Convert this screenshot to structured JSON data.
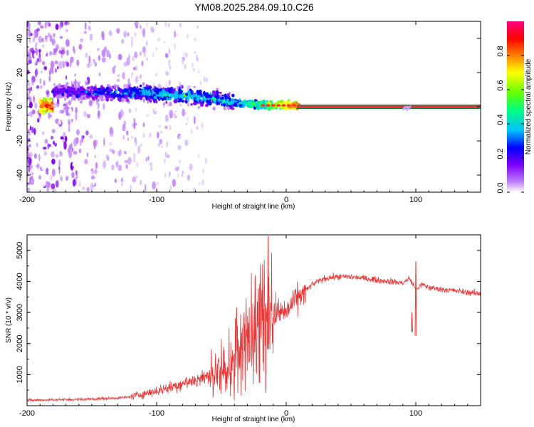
{
  "title": "YM08.2025.284.09.10.C26",
  "chart_data": [
    {
      "type": "heatmap",
      "xlabel": "Height of straight line (km)",
      "ylabel": "Frequency (Hz)",
      "xlim": [
        -200,
        150
      ],
      "ylim": [
        -50,
        50
      ],
      "xticks": [
        -200,
        -100,
        0,
        100
      ],
      "xtick_labels": [
        "-200",
        "-100",
        "0",
        "100"
      ],
      "yticks": [
        -40,
        -20,
        0,
        20,
        40
      ],
      "ytick_labels": [
        "-40",
        "-20",
        "0",
        "20",
        "40"
      ],
      "colorbar": {
        "label": "Normalized spectral amplitude",
        "range": [
          0,
          1
        ],
        "ticks": [
          0,
          0.2,
          0.4,
          0.6,
          0.8
        ],
        "tick_labels": [
          "0.0",
          "0.2",
          "0.4",
          "0.6",
          "0.8"
        ],
        "colormap": [
          "#ffffff",
          "#c080ff",
          "#7f00ff",
          "#0000ff",
          "#00c0ff",
          "#00ff80",
          "#80ff00",
          "#ffff00",
          "#ff8000",
          "#ff0000",
          "#ff0080"
        ]
      },
      "features": {
        "diffuse_region_x": [
          -200,
          -120
        ],
        "band": [
          {
            "x": -180,
            "y": 9,
            "amp": 0.3
          },
          {
            "x": -150,
            "y": 8,
            "amp": 0.35
          },
          {
            "x": -130,
            "y": 8,
            "amp": 0.4
          },
          {
            "x": -110,
            "y": 8,
            "amp": 0.45
          },
          {
            "x": -90,
            "y": 7,
            "amp": 0.5
          },
          {
            "x": -70,
            "y": 6,
            "amp": 0.5
          },
          {
            "x": -50,
            "y": 4,
            "amp": 0.45
          },
          {
            "x": -35,
            "y": 2,
            "amp": 0.5
          },
          {
            "x": -20,
            "y": 1,
            "amp": 0.6
          },
          {
            "x": -10,
            "y": 1,
            "amp": 0.7
          },
          {
            "x": 0,
            "y": 1,
            "amp": 0.8
          },
          {
            "x": 10,
            "y": 0.5,
            "amp": 0.9
          }
        ],
        "steady_line": {
          "x_start": 8,
          "x_end": 150,
          "y": 0,
          "amp": 0.95
        },
        "isolated_patch": {
          "x": 93,
          "y": 0
        }
      }
    },
    {
      "type": "line",
      "xlabel": "Height of straight line (km)",
      "ylabel": "SNR (10 * v/v)",
      "xlim": [
        -200,
        150
      ],
      "ylim": [
        0,
        5500
      ],
      "xticks": [
        -200,
        -100,
        0,
        100
      ],
      "xtick_labels": [
        "-200",
        "-100",
        "0",
        "100"
      ],
      "yticks": [
        1000,
        2000,
        3000,
        4000,
        5000
      ],
      "ytick_labels": [
        "1000",
        "2000",
        "3000",
        "4000",
        "5000"
      ],
      "color": "#ee3333",
      "x": [
        -200,
        -180,
        -160,
        -140,
        -125,
        -120,
        -110,
        -100,
        -90,
        -80,
        -70,
        -60,
        -50,
        -45,
        -40,
        -35,
        -30,
        -25,
        -22,
        -20,
        -18,
        -15,
        -12,
        -10,
        -5,
        0,
        5,
        10,
        15,
        20,
        25,
        30,
        40,
        50,
        60,
        70,
        80,
        90,
        95,
        100,
        105,
        110,
        120,
        130,
        140,
        150
      ],
      "y": [
        170,
        190,
        200,
        230,
        260,
        290,
        380,
        480,
        580,
        720,
        820,
        950,
        1050,
        1250,
        1500,
        1900,
        2400,
        2700,
        3200,
        2500,
        3700,
        2900,
        3300,
        2800,
        3000,
        3000,
        3300,
        3500,
        3700,
        3900,
        4000,
        4100,
        4150,
        4150,
        4100,
        4050,
        4000,
        3950,
        4100,
        3750,
        3900,
        3800,
        3750,
        3700,
        3650,
        3600
      ],
      "peaks": [
        {
          "x": -14,
          "y": 5450
        },
        {
          "x": -24,
          "y": 4200
        },
        {
          "x": 100,
          "y": 4650
        },
        {
          "x": 97,
          "y": 3000
        }
      ]
    }
  ]
}
